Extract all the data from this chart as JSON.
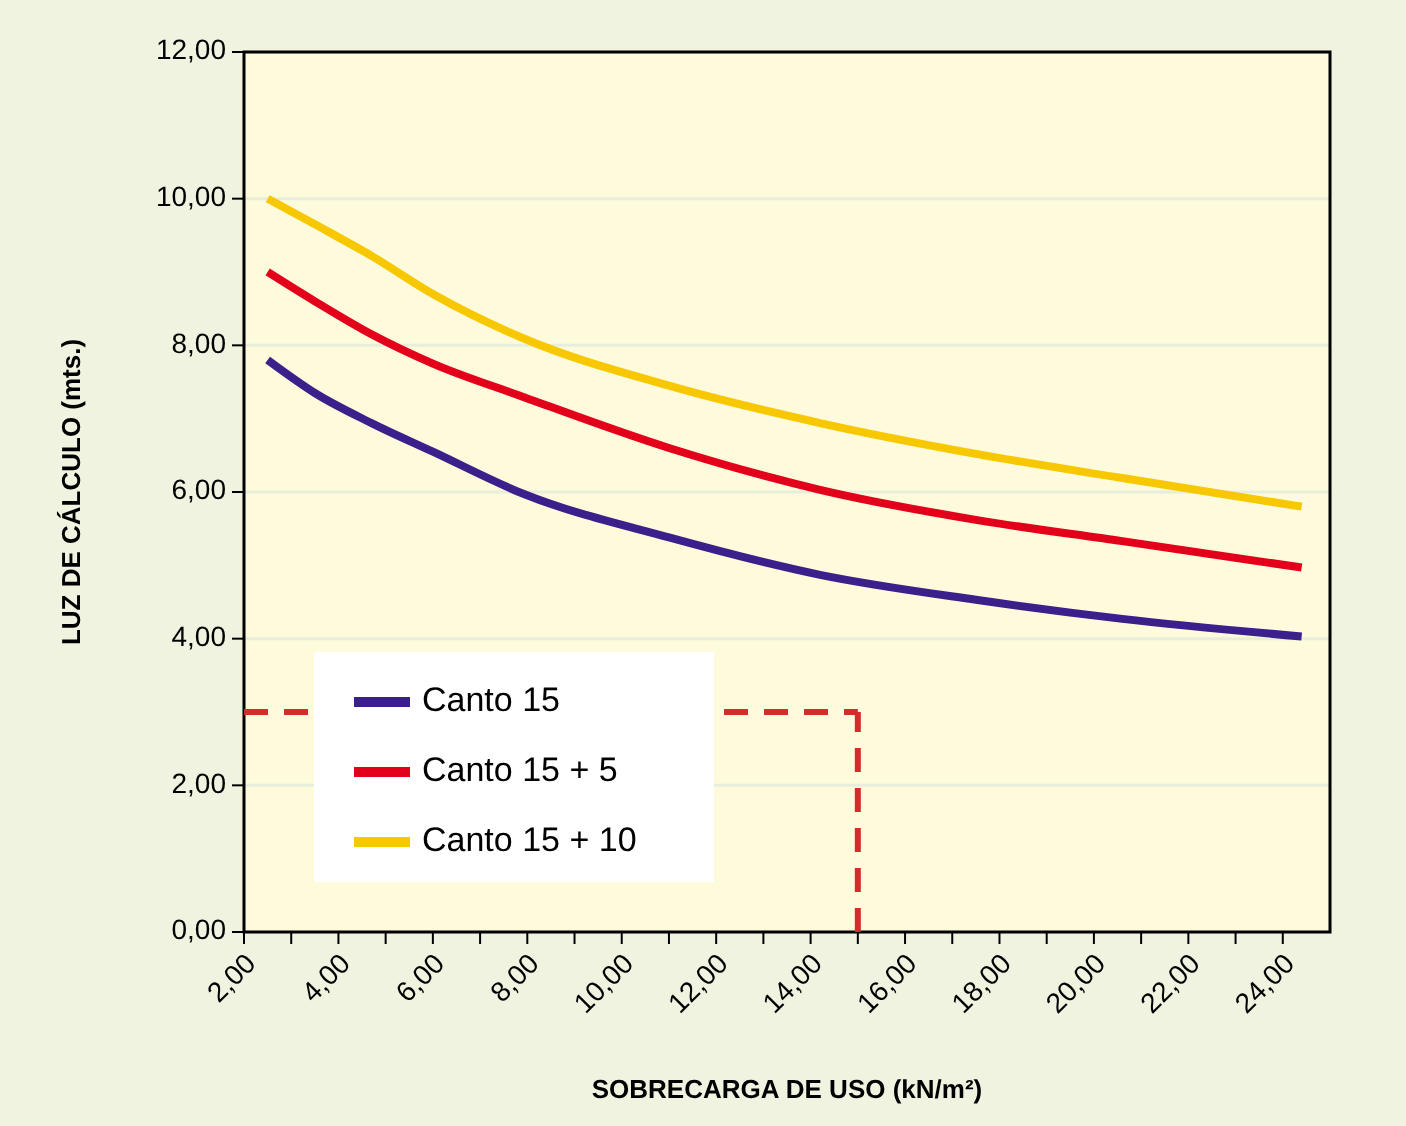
{
  "chart_data": {
    "type": "line",
    "xlabel": "SOBRECARGA DE USO (kN/m²)",
    "ylabel": "LUZ DE CÁLCULO (mts.)",
    "xlim": [
      2,
      25
    ],
    "ylim": [
      0,
      12
    ],
    "xticks": [
      {
        "value": 2,
        "label": "2,00"
      },
      {
        "value": 3,
        "label": null
      },
      {
        "value": 4,
        "label": "4,00"
      },
      {
        "value": 5,
        "label": null
      },
      {
        "value": 6,
        "label": "6,00"
      },
      {
        "value": 7,
        "label": null
      },
      {
        "value": 8,
        "label": "8,00"
      },
      {
        "value": 9,
        "label": null
      },
      {
        "value": 10,
        "label": "10,00"
      },
      {
        "value": 11,
        "label": null
      },
      {
        "value": 12,
        "label": "12,00"
      },
      {
        "value": 13,
        "label": null
      },
      {
        "value": 14,
        "label": "14,00"
      },
      {
        "value": 15,
        "label": null
      },
      {
        "value": 16,
        "label": "16,00"
      },
      {
        "value": 17,
        "label": null
      },
      {
        "value": 18,
        "label": "18,00"
      },
      {
        "value": 19,
        "label": null
      },
      {
        "value": 20,
        "label": "20,00"
      },
      {
        "value": 21,
        "label": null
      },
      {
        "value": 22,
        "label": "22,00"
      },
      {
        "value": 23,
        "label": null
      },
      {
        "value": 24,
        "label": "24,00"
      }
    ],
    "yticks": [
      {
        "value": 0,
        "label": "0,00"
      },
      {
        "value": 2,
        "label": "2,00"
      },
      {
        "value": 4,
        "label": "4,00"
      },
      {
        "value": 6,
        "label": "6,00"
      },
      {
        "value": 8,
        "label": "8,00"
      },
      {
        "value": 10,
        "label": "10,00"
      },
      {
        "value": 12,
        "label": "12,00"
      }
    ],
    "grid": "y",
    "legend": "bottom left",
    "line_style": "solid",
    "x": [
      2.5,
      3.5,
      4.7,
      6,
      7.9,
      11,
      14.2,
      17.5,
      20.6,
      24.4
    ],
    "series": [
      {
        "name": "Canto 15",
        "color": "#3b1f8a",
        "values": [
          7.8,
          7.35,
          6.94,
          6.55,
          5.98,
          5.38,
          4.87,
          4.53,
          4.27,
          4.03
        ]
      },
      {
        "name": "Canto 15 + 5",
        "color": "#e2001a",
        "values": [
          9.0,
          8.6,
          8.15,
          7.75,
          7.3,
          6.6,
          6.03,
          5.62,
          5.33,
          4.97
        ]
      },
      {
        "name": "Canto 15 + 10",
        "color": "#f7c800",
        "values": [
          10.0,
          9.65,
          9.22,
          8.7,
          8.1,
          7.45,
          6.94,
          6.52,
          6.19,
          5.8
        ]
      }
    ],
    "ref_lines": [
      {
        "axis": "x",
        "value": 15,
        "color": "#d42b2b",
        "line_style": "dashed"
      },
      {
        "axis": "y",
        "value": 3,
        "color": "#d42b2b",
        "line_style": "dashed"
      }
    ]
  }
}
